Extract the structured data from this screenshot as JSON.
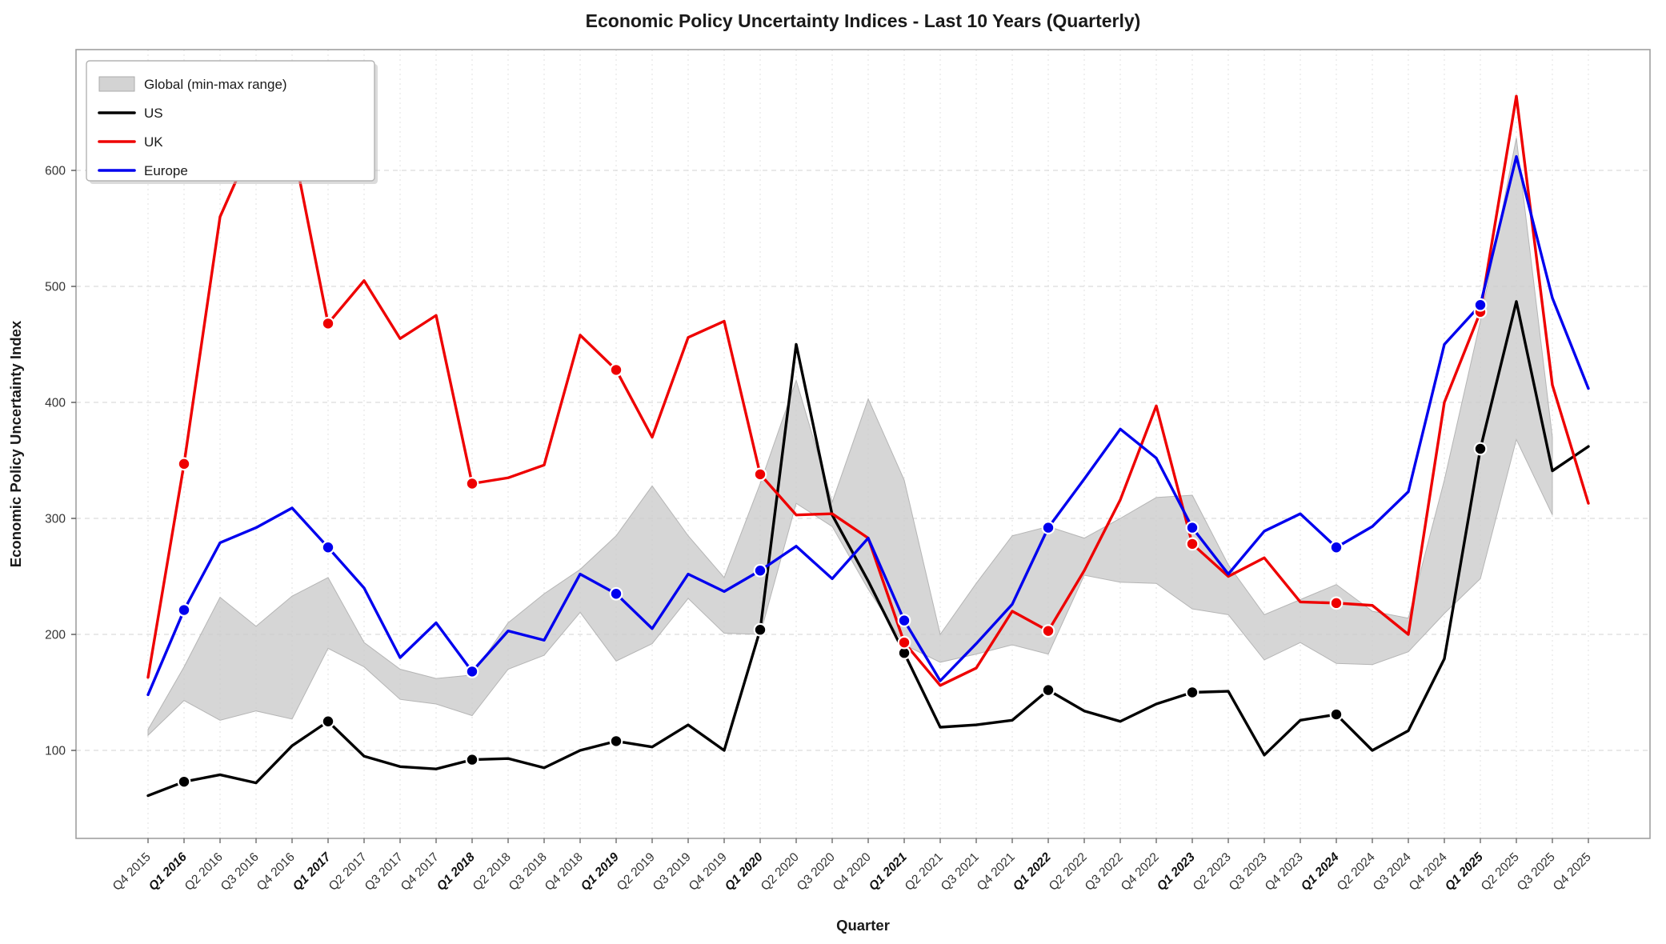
{
  "title": "Economic Policy Uncertainty Indices - Last 10 Years (Quarterly)",
  "axes": {
    "xlabel": "Quarter",
    "ylabel": "Economic Policy Uncertainty Index",
    "yticks": [
      100,
      200,
      300,
      400,
      500,
      600
    ]
  },
  "legend": {
    "position": "upper-left",
    "items": [
      {
        "label": "Global (min-max range)",
        "swatch": "patch",
        "color": "#cbcbcb"
      },
      {
        "label": "US",
        "swatch": "line",
        "color": "#000000"
      },
      {
        "label": "UK",
        "swatch": "line",
        "color": "#ee0000"
      },
      {
        "label": "Europe",
        "swatch": "line",
        "color": "#0000ee"
      }
    ]
  },
  "colors": {
    "us": "#000000",
    "uk": "#ee0000",
    "europe": "#0000ee",
    "band_fill": "#cbcbcb",
    "band_edge": "#b5b5b5",
    "grid": "#dcdcdc",
    "spine": "#a0a0a0",
    "text": "#1a1a1a",
    "tick_text": "#333333"
  },
  "chart_data": {
    "type": "line",
    "title": "Economic Policy Uncertainty Indices - Last 10 Years (Quarterly)",
    "xlabel": "Quarter",
    "ylabel": "Economic Policy Uncertainty Index",
    "ylim": [
      24,
      704
    ],
    "grid": true,
    "legend_position": "upper-left",
    "marker_note": "circle markers with white edge drawn on every Q1 quarter",
    "categories": [
      "Q4 2015",
      "Q1 2016",
      "Q2 2016",
      "Q3 2016",
      "Q4 2016",
      "Q1 2017",
      "Q2 2017",
      "Q3 2017",
      "Q4 2017",
      "Q1 2018",
      "Q2 2018",
      "Q3 2018",
      "Q4 2018",
      "Q1 2019",
      "Q2 2019",
      "Q3 2019",
      "Q4 2019",
      "Q1 2020",
      "Q2 2020",
      "Q3 2020",
      "Q4 2020",
      "Q1 2021",
      "Q2 2021",
      "Q3 2021",
      "Q4 2021",
      "Q1 2022",
      "Q2 2022",
      "Q3 2022",
      "Q4 2022",
      "Q1 2023",
      "Q2 2023",
      "Q3 2023",
      "Q4 2023",
      "Q1 2024",
      "Q2 2024",
      "Q3 2024",
      "Q4 2024",
      "Q1 2025",
      "Q2 2025",
      "Q3 2025",
      "Q4 2025"
    ],
    "series": [
      {
        "name": "US",
        "color": "#000000",
        "values": [
          61,
          73,
          79,
          72,
          104,
          125,
          95,
          86,
          84,
          92,
          93,
          85,
          100,
          108,
          103,
          122,
          100,
          204,
          450,
          303,
          246,
          184,
          120,
          122,
          126,
          152,
          134,
          125,
          140,
          150,
          151,
          96,
          126,
          131,
          100,
          117,
          179,
          360,
          487,
          341,
          362
        ]
      },
      {
        "name": "UK",
        "color": "#ee0000",
        "values": [
          163,
          347,
          560,
          630,
          625,
          468,
          505,
          455,
          475,
          330,
          335,
          346,
          458,
          428,
          370,
          456,
          470,
          338,
          303,
          304,
          283,
          193,
          156,
          171,
          220,
          203,
          255,
          316,
          397,
          278,
          250,
          266,
          228,
          227,
          225,
          200,
          400,
          478,
          664,
          415,
          313
        ]
      },
      {
        "name": "Europe",
        "color": "#0000ee",
        "values": [
          148,
          221,
          279,
          292,
          309,
          275,
          240,
          180,
          210,
          168,
          203,
          195,
          252,
          235,
          205,
          252,
          237,
          255,
          276,
          248,
          283,
          212,
          160,
          192,
          226,
          292,
          334,
          377,
          352,
          292,
          252,
          289,
          304,
          275,
          293,
          323,
          450,
          484,
          612,
          490,
          412
        ]
      }
    ],
    "band": {
      "name": "Global (min-max range)",
      "note": "shaded min-max envelope; data ends at Q3 2025",
      "min": [
        113,
        143,
        126,
        134,
        127,
        188,
        172,
        144,
        140,
        130,
        170,
        182,
        219,
        177,
        192,
        231,
        201,
        200,
        313,
        293,
        239,
        191,
        176,
        183,
        191,
        183,
        251,
        245,
        244,
        222,
        217,
        178,
        193,
        175,
        174,
        185,
        218,
        248,
        368,
        303
      ],
      "max": [
        118,
        172,
        232,
        207,
        233,
        249,
        193,
        170,
        162,
        165,
        210,
        235,
        256,
        285,
        328,
        285,
        249,
        330,
        419,
        314,
        403,
        333,
        200,
        244,
        285,
        293,
        283,
        300,
        318,
        320,
        260,
        217,
        230,
        243,
        220,
        214,
        333,
        470,
        628,
        370
      ]
    }
  }
}
